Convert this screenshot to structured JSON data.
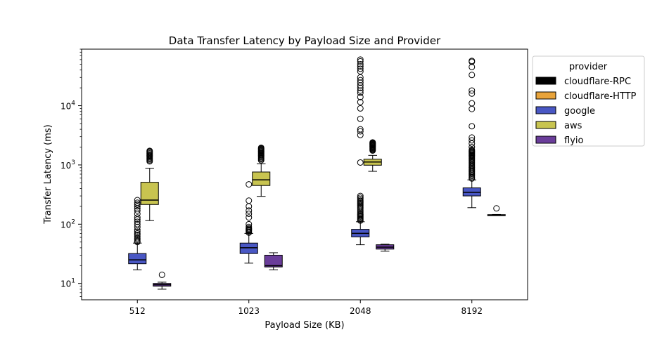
{
  "chart_data": {
    "type": "box",
    "title": "Data Transfer Latency by Payload Size and Provider",
    "xlabel": "Payload Size (KB)",
    "ylabel": "Transfer Latency (ms)",
    "yscale": "log",
    "ylim": [
      5.3,
      90000
    ],
    "categories": [
      "512",
      "1023",
      "2048",
      "8192"
    ],
    "yticks": [
      {
        "value": 10,
        "base": "10",
        "exp": "1"
      },
      {
        "value": 100,
        "base": "10",
        "exp": "2"
      },
      {
        "value": 1000,
        "base": "10",
        "exp": "3"
      },
      {
        "value": 10000,
        "base": "10",
        "exp": "4"
      }
    ],
    "legend": {
      "title": "provider",
      "placement": "outside-right-top",
      "entries": [
        {
          "name": "cloudflare-RPC",
          "color": "#000000"
        },
        {
          "name": "cloudflare-HTTP",
          "color": "#e8a33a"
        },
        {
          "name": "google",
          "color": "#4957c4"
        },
        {
          "name": "aws",
          "color": "#c8c450"
        },
        {
          "name": "flyio",
          "color": "#6a3d9a"
        }
      ]
    },
    "boxes": [
      {
        "category": "512",
        "provider": "google",
        "whislo": 17,
        "q1": 21.5,
        "med": 25,
        "q3": 32,
        "whishi": 48,
        "fliers": [
          50,
          52,
          55,
          58,
          62,
          66,
          70,
          75,
          80,
          90,
          100,
          110,
          120,
          130,
          150,
          170,
          185,
          200,
          215,
          230,
          255
        ]
      },
      {
        "category": "512",
        "provider": "aws",
        "whislo": 115,
        "q1": 215,
        "med": 255,
        "q3": 510,
        "whishi": 880,
        "fliers": [
          1150,
          1200,
          1250,
          1300,
          1350,
          1400,
          1450,
          1500,
          1560,
          1620,
          1680,
          1730
        ]
      },
      {
        "category": "512",
        "provider": "flyio",
        "whislo": 8,
        "q1": 9,
        "med": 9.5,
        "q3": 10,
        "whishi": 10.5,
        "fliers": [
          14
        ]
      },
      {
        "category": "1023",
        "provider": "google",
        "whislo": 22,
        "q1": 32,
        "med": 40,
        "q3": 48,
        "whishi": 70,
        "fliers": [
          72,
          75,
          78,
          80,
          82,
          85,
          90,
          100,
          130,
          150,
          170,
          200,
          250,
          470
        ]
      },
      {
        "category": "1023",
        "provider": "aws",
        "whislo": 295,
        "q1": 450,
        "med": 560,
        "q3": 760,
        "whishi": 1050,
        "fliers": [
          1200,
          1250,
          1300,
          1350,
          1400,
          1450,
          1500,
          1550,
          1600,
          1650,
          1700,
          1750,
          1800,
          1850,
          1900,
          1950
        ]
      },
      {
        "category": "1023",
        "provider": "flyio",
        "whislo": 17,
        "q1": 19,
        "med": 20,
        "q3": 30,
        "whishi": 33,
        "fliers": []
      },
      {
        "category": "2048",
        "provider": "google",
        "whislo": 45,
        "q1": 61,
        "med": 70,
        "q3": 82,
        "whishi": 110,
        "fliers": [
          115,
          120,
          125,
          130,
          135,
          140,
          145,
          150,
          160,
          170,
          180,
          190,
          200,
          210,
          220,
          230,
          240,
          250,
          265,
          280,
          300,
          1100,
          3200,
          3700,
          4000,
          6000,
          9000,
          11500,
          14000,
          16500,
          18000,
          20000,
          22000,
          24500,
          27000,
          30000,
          38000,
          42000,
          46000,
          50000,
          56000,
          60000
        ]
      },
      {
        "category": "2048",
        "provider": "aws",
        "whislo": 780,
        "q1": 990,
        "med": 1120,
        "q3": 1250,
        "whishi": 1450,
        "fliers": [
          1750,
          1800,
          1850,
          1900,
          1950,
          2000,
          2050,
          2100,
          2150,
          2200,
          2250,
          2300,
          2350,
          2400
        ]
      },
      {
        "category": "2048",
        "provider": "flyio",
        "whislo": 35,
        "q1": 38,
        "med": 41,
        "q3": 45,
        "whishi": 46,
        "fliers": []
      },
      {
        "category": "8192",
        "provider": "google",
        "whislo": 190,
        "q1": 300,
        "med": 345,
        "q3": 410,
        "whishi": 560,
        "fliers": [
          590,
          620,
          650,
          680,
          710,
          740,
          770,
          800,
          840,
          880,
          920,
          960,
          1000,
          1050,
          1100,
          1150,
          1200,
          1250,
          1300,
          1350,
          1400,
          1450,
          1500,
          1550,
          1600,
          1650,
          1700,
          1750,
          1800,
          2000,
          2300,
          2600,
          2900,
          4500,
          8800,
          11000,
          16000,
          18000,
          33000,
          45000,
          55000,
          57000
        ]
      },
      {
        "category": "8192",
        "provider": "flyio",
        "whislo": 140,
        "q1": 141,
        "med": 143,
        "q3": 145,
        "whishi": 146,
        "fliers": [
          185
        ]
      }
    ]
  }
}
